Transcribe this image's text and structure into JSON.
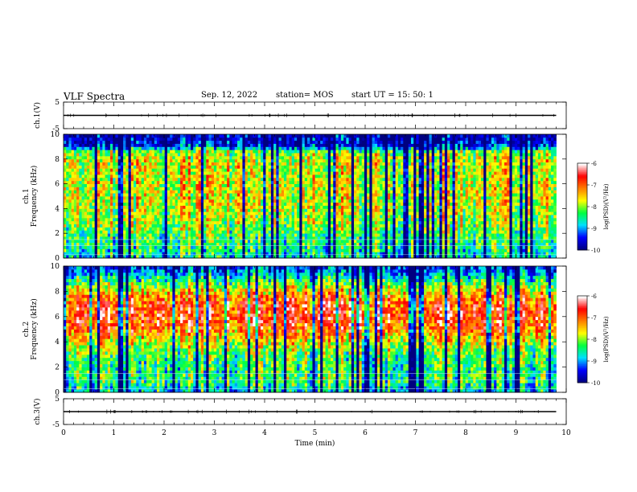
{
  "header": {
    "title": "VLF Spectra",
    "date": "Sep. 12, 2022",
    "station": "station= MOS",
    "start": "start  UT =  15: 50: 1"
  },
  "chart_data": [
    {
      "type": "line",
      "panel": "ch1-waveform",
      "ylabel": "ch.1(V)",
      "ylim": [
        -5,
        5
      ],
      "y_ticks": [
        "5",
        "-5"
      ],
      "xlim": [
        0,
        10
      ],
      "series": [
        {
          "x": [
            0,
            9.8
          ],
          "y": [
            0,
            0
          ]
        }
      ]
    },
    {
      "type": "heatmap",
      "panel": "ch1-spectrogram",
      "ylabel": [
        "ch.1",
        "Frequency (kHz)"
      ],
      "ylim": [
        0,
        10
      ],
      "y_ticks": [
        "0",
        "2",
        "4",
        "6",
        "8",
        "10"
      ],
      "xlim": [
        0,
        10
      ],
      "data_end_min": 9.8,
      "band_profile": {
        "freq_khz": [
          0,
          0.5,
          1,
          2,
          3,
          4,
          5,
          6,
          7,
          8,
          8.7,
          9,
          10
        ],
        "mean_log_psd": [
          -8.8,
          -8.6,
          -8.5,
          -8.3,
          -8.0,
          -7.9,
          -7.8,
          -7.8,
          -7.8,
          -7.8,
          -8.2,
          -9.5,
          -9.9
        ]
      },
      "colorbar": {
        "label": "log(PSD)(V²/Hz)",
        "range": [
          -10,
          -6
        ],
        "ticks": [
          "-6",
          "-7",
          "-8",
          "-9",
          "-10"
        ]
      }
    },
    {
      "type": "heatmap",
      "panel": "ch2-spectrogram",
      "ylabel": [
        "ch.2",
        "Frequency (kHz)"
      ],
      "ylim": [
        0,
        10
      ],
      "y_ticks": [
        "0",
        "2",
        "4",
        "6",
        "8",
        "10"
      ],
      "xlim": [
        0,
        10
      ],
      "data_end_min": 9.8,
      "band_profile": {
        "freq_khz": [
          0,
          0.5,
          1,
          2,
          3,
          4,
          5,
          6,
          7,
          8,
          9,
          10
        ],
        "mean_log_psd": [
          -9.0,
          -8.6,
          -8.4,
          -8.5,
          -8.3,
          -7.8,
          -7.1,
          -6.8,
          -6.9,
          -7.6,
          -8.6,
          -9.6
        ]
      },
      "colorbar": {
        "label": "log(PSD)(V²/Hz)",
        "range": [
          -10,
          -6
        ],
        "ticks": [
          "-6",
          "-7",
          "-8",
          "-9",
          "-10"
        ]
      }
    },
    {
      "type": "line",
      "panel": "ch3-waveform",
      "ylabel": "ch.3(V)",
      "ylim": [
        -5,
        5
      ],
      "y_ticks": [
        "5",
        "-5"
      ],
      "xlim": [
        0,
        10
      ],
      "xlabel": "Time  (min)",
      "x_ticks": [
        "0",
        "1",
        "2",
        "3",
        "4",
        "5",
        "6",
        "7",
        "8",
        "9",
        "10"
      ],
      "series": [
        {
          "x": [
            0,
            9.8
          ],
          "y": [
            0,
            0
          ]
        }
      ]
    }
  ],
  "colormap": [
    "#000080",
    "#0000ff",
    "#00e0ff",
    "#00ff40",
    "#ffff00",
    "#ff8000",
    "#ff0000",
    "#ffffff"
  ]
}
